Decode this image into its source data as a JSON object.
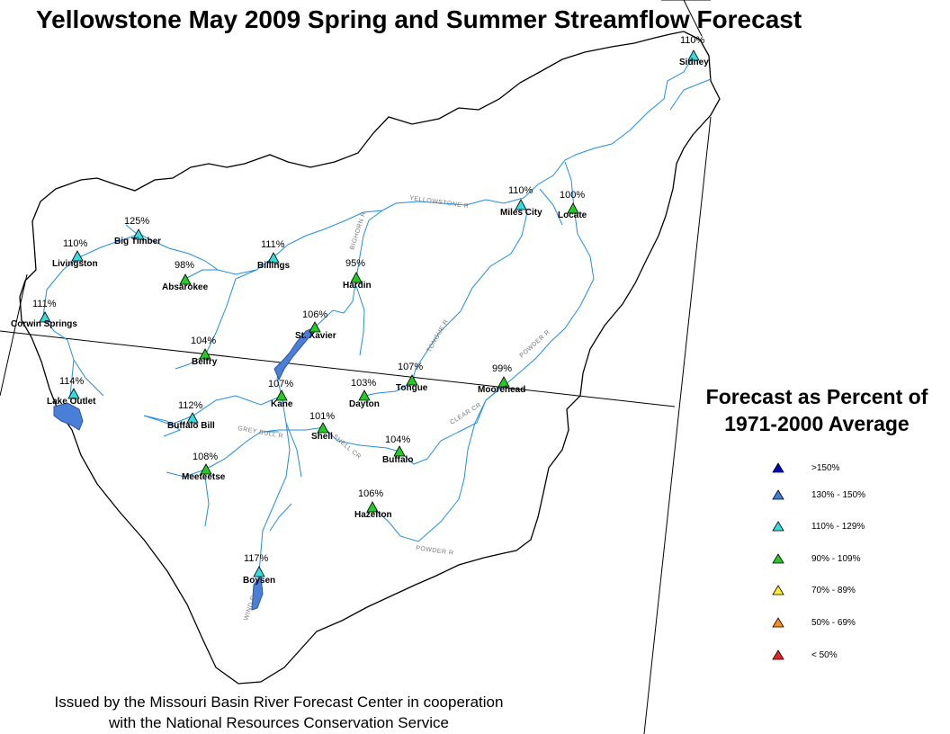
{
  "title": "Yellowstone May 2009 Spring and Summer Streamflow Forecast",
  "legend": {
    "title_line1": "Forecast as Percent of",
    "title_line2": "1971-2000 Average",
    "items": [
      {
        "label": ">150%",
        "color": "#0000cc"
      },
      {
        "label": "130% - 150%",
        "color": "#3a7fe0"
      },
      {
        "label": "110% - 129%",
        "color": "#33dddd"
      },
      {
        "label": "90% - 109%",
        "color": "#22cc22"
      },
      {
        "label": "70% - 89%",
        "color": "#ffee22"
      },
      {
        "label": "50% - 69%",
        "color": "#ff8c1a"
      },
      {
        "label": "< 50%",
        "color": "#ee2222"
      }
    ]
  },
  "footer": {
    "line1": "Issued by the Missouri Basin River Forecast Center in cooperation",
    "line2": "with the National Resources Conservation Service"
  },
  "stations": [
    {
      "name": "Sidney",
      "pct": "110%",
      "category": "110% - 129%"
    },
    {
      "name": "Miles City",
      "pct": "110%",
      "category": "110% - 129%"
    },
    {
      "name": "Locate",
      "pct": "100%",
      "category": "90% - 109%"
    },
    {
      "name": "Big Timber",
      "pct": "125%",
      "category": "110% - 129%"
    },
    {
      "name": "Livingston",
      "pct": "110%",
      "category": "110% - 129%"
    },
    {
      "name": "Billings",
      "pct": "111%",
      "category": "110% - 129%"
    },
    {
      "name": "Absarokee",
      "pct": "98%",
      "category": "90% - 109%"
    },
    {
      "name": "Hardin",
      "pct": "95%",
      "category": "90% - 109%"
    },
    {
      "name": "Corwin Springs",
      "pct": "111%",
      "category": "110% - 129%"
    },
    {
      "name": "St. Xavier",
      "pct": "106%",
      "category": "90% - 109%"
    },
    {
      "name": "Belfry",
      "pct": "104%",
      "category": "90% - 109%"
    },
    {
      "name": "Tongue",
      "pct": "107%",
      "category": "90% - 109%"
    },
    {
      "name": "Moorehead",
      "pct": "99%",
      "category": "90% - 109%"
    },
    {
      "name": "Lake Outlet",
      "pct": "114%",
      "category": "110% - 129%"
    },
    {
      "name": "Kane",
      "pct": "107%",
      "category": "90% - 109%"
    },
    {
      "name": "Dayton",
      "pct": "103%",
      "category": "90% - 109%"
    },
    {
      "name": "Buffalo Bill",
      "pct": "112%",
      "category": "110% - 129%"
    },
    {
      "name": "Shell",
      "pct": "101%",
      "category": "90% - 109%"
    },
    {
      "name": "Buffalo",
      "pct": "104%",
      "category": "90% - 109%"
    },
    {
      "name": "Meeteetse",
      "pct": "108%",
      "category": "90% - 109%"
    },
    {
      "name": "Hazelton",
      "pct": "106%",
      "category": "90% - 109%"
    },
    {
      "name": "Boysen",
      "pct": "117%",
      "category": "110% - 129%"
    }
  ],
  "river_labels": [
    "YELLOWSTONE R",
    "BIGHORN R",
    "TONGUE R",
    "POWDER R",
    "CLEAR CR",
    "GREY BULL R",
    "SHELL CR",
    "POWDER R",
    "WIND R"
  ]
}
